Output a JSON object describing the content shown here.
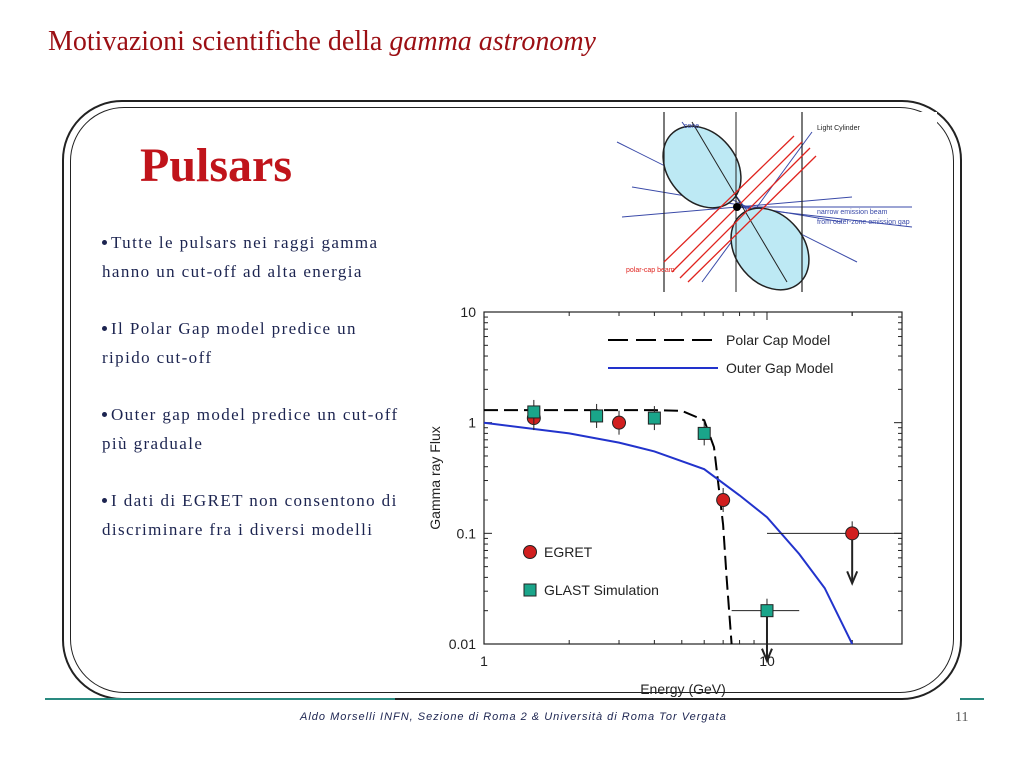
{
  "slide": {
    "title_main": "Motivazioni scientifiche della ",
    "title_italic": "gamma astronomy",
    "heading": "Pulsars",
    "bullets": [
      "Tutte le pulsars nei raggi gamma hanno un cut-off ad alta energia",
      "Il Polar Gap model predice un  ripido cut-off",
      "Outer gap model predice un cut-off più graduale",
      "I dati di EGRET non consentono di discriminare fra i diversi modelli"
    ],
    "footer": "Aldo Morselli INFN, Sezione di Roma 2  &  Università di Roma Tor Vergata",
    "page_number": "11"
  },
  "diagram": {
    "labels": {
      "light_cylinder": "Light Cylinder",
      "cone_label": "cone",
      "emission_beam": "narrow emission beam",
      "outer_gap": "from outer-zone emission gap",
      "polar_beam": "polar-cap beam"
    },
    "colors": {
      "lobe": "#bde9f4",
      "beam": "#e0241f",
      "fan": "#3a4aa8"
    }
  },
  "chart_data": {
    "type": "line",
    "xscale": "log",
    "yscale": "log",
    "xlim": [
      1,
      30
    ],
    "ylim": [
      0.01,
      10
    ],
    "xlabel": "Energy   (GeV)",
    "ylabel": "Gamma ray Flux",
    "x_ticks": [
      "1",
      "10"
    ],
    "y_ticks": [
      "10",
      "1",
      "0.1",
      "0.01"
    ],
    "series": [
      {
        "name": "Polar Cap Model",
        "style": "dashed",
        "color": "#000000",
        "x": [
          1,
          2,
          4,
          5,
          6,
          6.5,
          7,
          7.2,
          7.5
        ],
        "y": [
          1.3,
          1.3,
          1.3,
          1.28,
          1.05,
          0.6,
          0.12,
          0.04,
          0.01
        ]
      },
      {
        "name": "Outer Gap Model",
        "style": "solid",
        "color": "#2233cc",
        "x": [
          1,
          2,
          3,
          4,
          6,
          8,
          10,
          13,
          16,
          20
        ],
        "y": [
          1.0,
          0.8,
          0.66,
          0.55,
          0.38,
          0.22,
          0.14,
          0.065,
          0.032,
          0.01
        ]
      },
      {
        "name": "EGRET",
        "type": "scatter",
        "color": "#d11f1f",
        "points": [
          {
            "x": 1.5,
            "y": 1.1
          },
          {
            "x": 3,
            "y": 1.0
          },
          {
            "x": 7,
            "y": 0.2
          },
          {
            "x": 20,
            "y": 0.1,
            "upper_limit": true,
            "xerr": [
              10,
              30
            ]
          }
        ]
      },
      {
        "name": "GLAST Simulation",
        "type": "scatter",
        "color": "#1aa58a",
        "points": [
          {
            "x": 1.5,
            "y": 1.25
          },
          {
            "x": 2.5,
            "y": 1.15
          },
          {
            "x": 4,
            "y": 1.1
          },
          {
            "x": 6,
            "y": 0.8
          },
          {
            "x": 10,
            "y": 0.02,
            "upper_limit": true,
            "xerr": [
              7.5,
              13
            ]
          }
        ]
      }
    ]
  }
}
